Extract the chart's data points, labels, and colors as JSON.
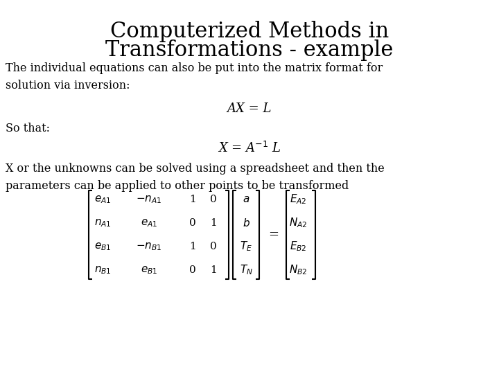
{
  "title_line1": "Computerized Methods in",
  "title_line2": "Transformations - example",
  "title_fontsize": 22,
  "title_font": "serif",
  "body_fontsize": 11.5,
  "body_font": "serif",
  "eq_fontsize": 13,
  "mat_fontsize": 11,
  "background_color": "#ffffff",
  "text_color": "#000000",
  "para1": "The individual equations can also be put into the matrix format for\nsolution via inversion:",
  "eq1": "AX = L",
  "para2": "So that:",
  "eq2": "X = A$^{-1}$ L",
  "para3": "X or the unknowns can be solved using a spreadsheet and then the\nparameters can be applied to other points to be transformed",
  "mat_A": [
    [
      "$e_{A1}$",
      "$-n_{A1}$",
      "1",
      "0"
    ],
    [
      "$n_{A1}$",
      "$e_{A1}$",
      "0",
      "1"
    ],
    [
      "$e_{B1}$",
      "$-n_{B1}$",
      "1",
      "0"
    ],
    [
      "$n_{B1}$",
      "$e_{B1}$",
      "0",
      "1"
    ]
  ],
  "mat_X": [
    "$a$",
    "$b$",
    "$T_E$",
    "$T_N$"
  ],
  "mat_L": [
    "$E_{A2}$",
    "$N_{A2}$",
    "$E_{B2}$",
    "$N_{B2}$"
  ]
}
